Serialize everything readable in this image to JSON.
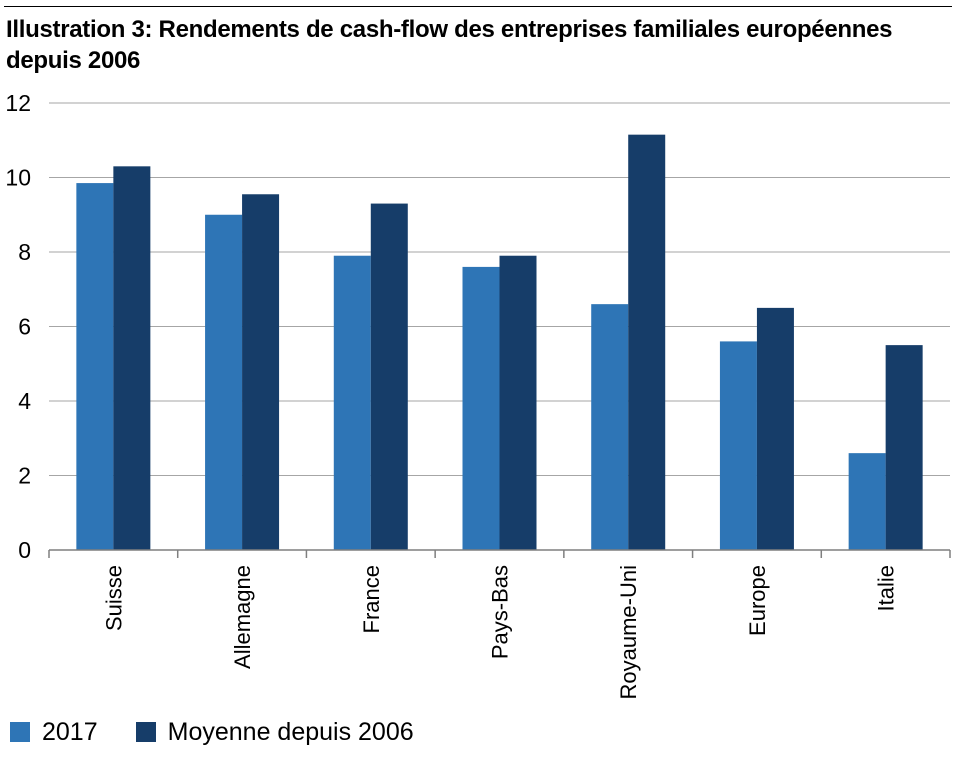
{
  "colors": {
    "series_2017": "#2e75b6",
    "series_avg": "#163d69",
    "grid": "#a6a6a6",
    "axis": "#7f7f7f"
  },
  "chart_data": {
    "type": "bar",
    "title": "Illustration 3: Rendements de cash-flow des entreprises familiales européennes depuis 2006",
    "xlabel": "",
    "ylabel": "",
    "categories": [
      "Suisse",
      "Allemagne",
      "France",
      "Pays-Bas",
      "Royaume-Uni",
      "Europe",
      "Italie"
    ],
    "series": [
      {
        "name": "2017",
        "values": [
          9.85,
          9.0,
          7.9,
          7.6,
          6.6,
          5.6,
          2.6
        ]
      },
      {
        "name": "Moyenne depuis 2006",
        "values": [
          10.3,
          9.55,
          9.3,
          7.9,
          11.15,
          6.5,
          5.5
        ]
      }
    ],
    "ylim": [
      0,
      12
    ],
    "yticks": [
      "0",
      "2",
      "4",
      "6",
      "8",
      "10",
      "12"
    ],
    "grid": true,
    "legend_position": "bottom-left"
  }
}
